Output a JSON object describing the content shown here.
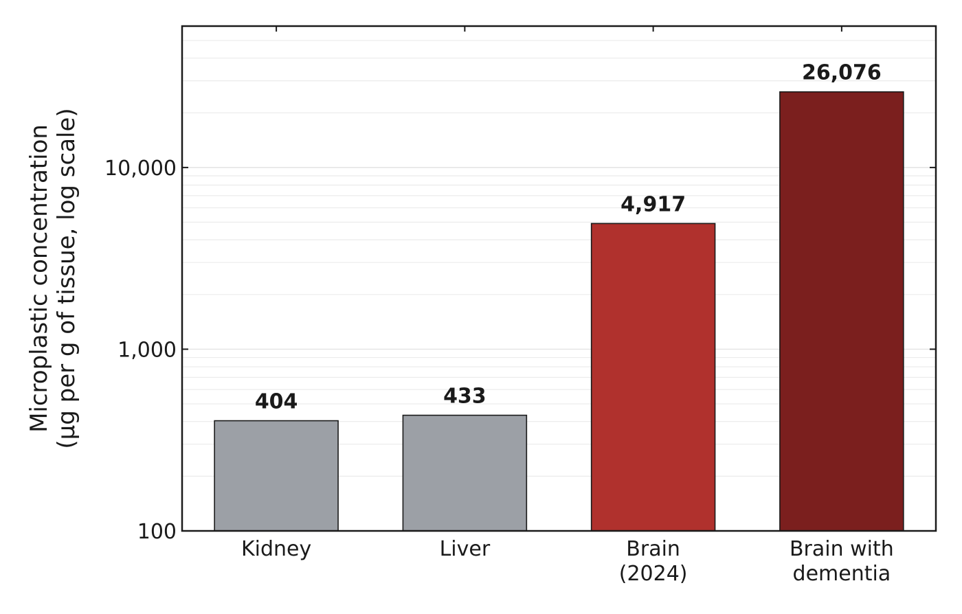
{
  "chart_data": {
    "type": "bar",
    "categories": [
      "Kidney",
      "Liver",
      "Brain\n(2024)",
      "Brain with\ndementia"
    ],
    "values": [
      404,
      433,
      4917,
      26076
    ],
    "value_labels": [
      "404",
      "433",
      "4,917",
      "26,076"
    ],
    "colors": [
      "#9ca0a6",
      "#9ca0a6",
      "#b0312d",
      "#7b1f1e"
    ],
    "ylabel": "Microplastic concentration\n(µg per g of tissue, log scale)",
    "ylim": [
      100,
      60000
    ],
    "log_scale": true,
    "yticks": [
      100,
      {
        "value": 1000,
        "label": "1,000"
      },
      {
        "value": 10000,
        "label": "10,000"
      }
    ],
    "yticks_minor": [
      200,
      300,
      400,
      500,
      600,
      700,
      800,
      900,
      2000,
      3000,
      4000,
      5000,
      6000,
      7000,
      8000,
      9000,
      20000,
      30000,
      40000,
      50000
    ],
    "grid": true
  }
}
